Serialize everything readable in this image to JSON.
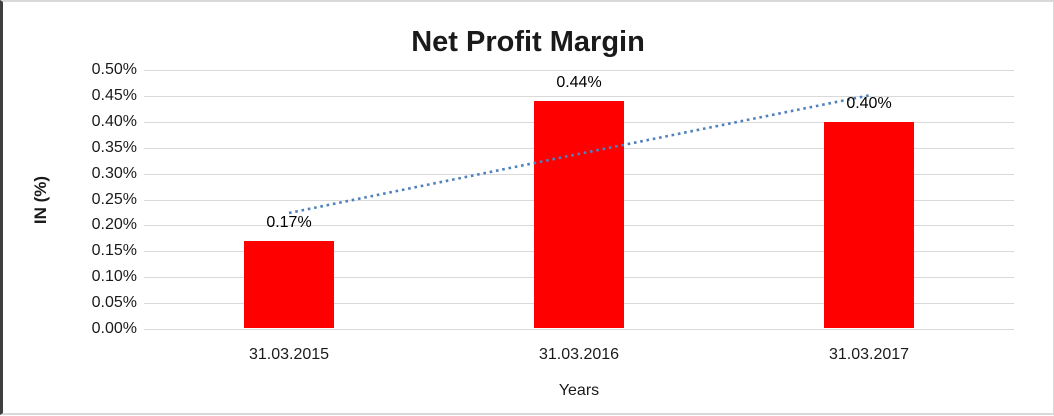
{
  "chart_data": {
    "type": "bar",
    "title": "Net Profit Margin",
    "xlabel": "Years",
    "ylabel": "IN (%)",
    "categories": [
      "31.03.2015",
      "31.03.2016",
      "31.03.2017"
    ],
    "series": [
      {
        "name": "Net Profit Margin",
        "values": [
          0.17,
          0.44,
          0.4
        ]
      }
    ],
    "data_labels": [
      "0.17%",
      "0.44%",
      "0.40%"
    ],
    "ylim": [
      0.0,
      0.5
    ],
    "ytick_step": 0.05,
    "ytick_labels": [
      "0.00%",
      "0.05%",
      "0.10%",
      "0.15%",
      "0.20%",
      "0.25%",
      "0.30%",
      "0.35%",
      "0.40%",
      "0.45%",
      "0.50%"
    ],
    "grid": true,
    "legend": "none",
    "bar_color": "#ff0000",
    "gridline_color": "#d9d9d9",
    "trendline": {
      "type": "linear",
      "style": "dotted",
      "color": "#4f81bd",
      "points_pct": [
        0.224,
        0.338,
        0.451
      ]
    }
  }
}
